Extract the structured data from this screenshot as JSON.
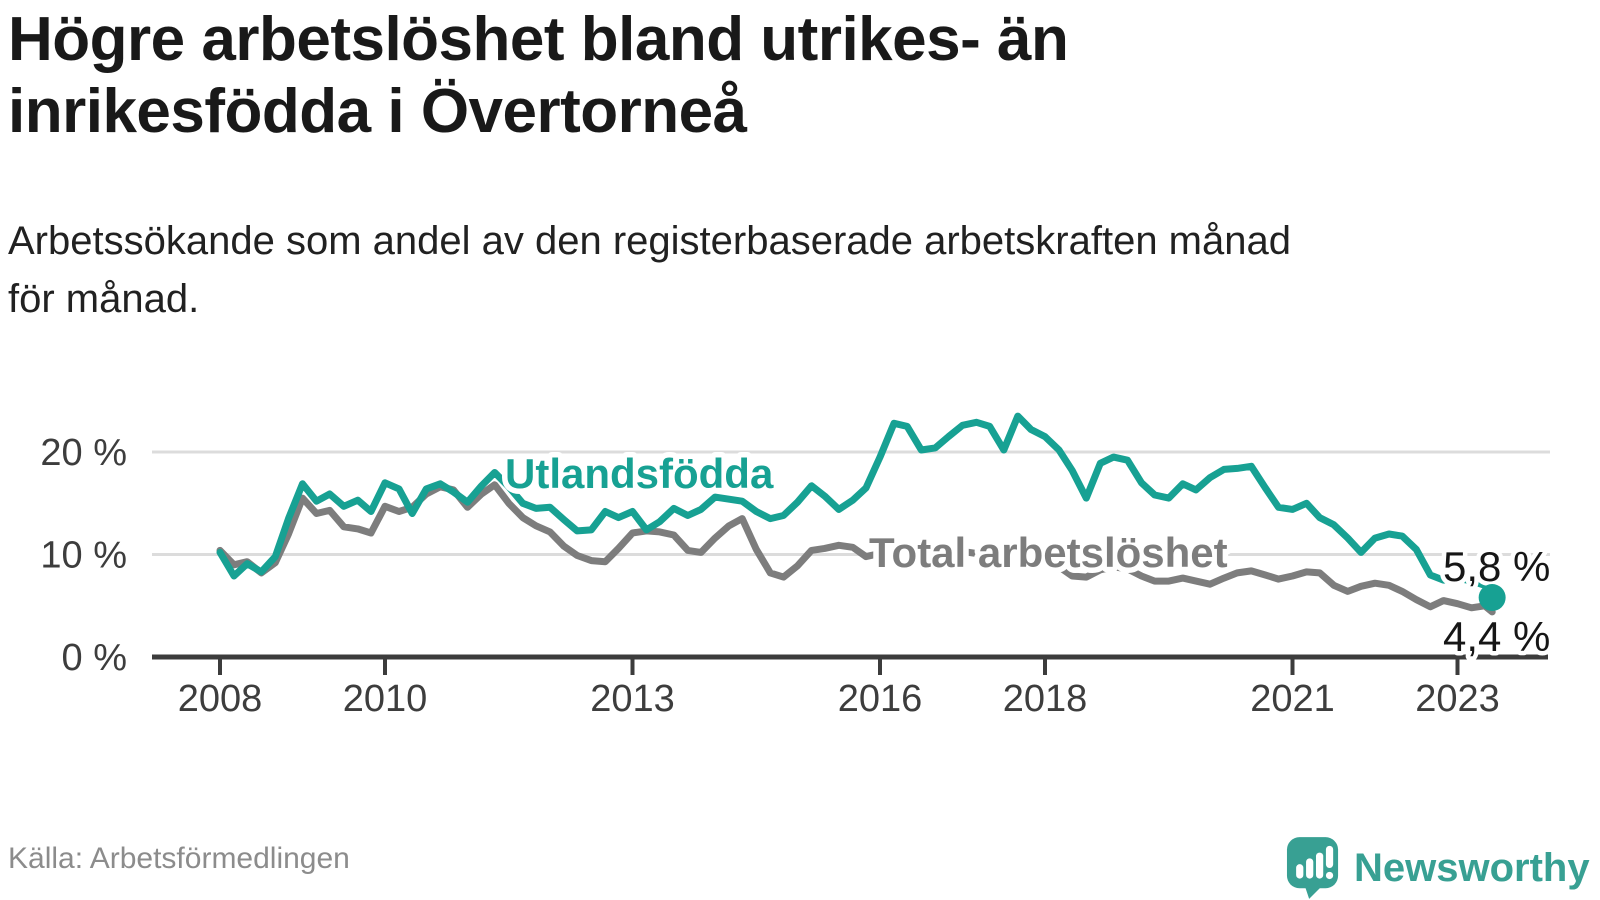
{
  "header": {
    "title_lines": [
      "Högre arbetslöshet bland utrikes- än",
      "inrikesfödda i Övertorneå"
    ],
    "subtitle_lines": [
      "Arbetssökande som andel av den registerbaserade arbetskraften månad",
      "för månad."
    ]
  },
  "footer": {
    "source_label": "Källa: Arbetsförmedlingen",
    "brand_name": "Newsworthy",
    "brand_icon": "speech-bubble-bar-chart-icon"
  },
  "colors": {
    "accent_teal": "#17a193",
    "total_gray": "#7d7d7d",
    "grid": "#dcdcdc",
    "axis": "#3c3c3c",
    "tick_text": "#3d3d3d",
    "value_text": "#161616",
    "title_text": "#191919",
    "muted_text": "#8c8c8c",
    "brand_teal": "#38a093",
    "halo": "#ffffff"
  },
  "chart_data": {
    "type": "line",
    "x_unit": "decimal-year (monthly samples, approx. 2-month grid)",
    "xlim": [
      2008,
      2023.42
    ],
    "ylim": [
      0,
      24.5
    ],
    "grid": "horizontal",
    "legend_position": "inline-labels",
    "x": [
      2008,
      2008.17,
      2008.33,
      2008.5,
      2008.67,
      2008.83,
      2009,
      2009.17,
      2009.33,
      2009.5,
      2009.67,
      2009.83,
      2010,
      2010.17,
      2010.33,
      2010.5,
      2010.67,
      2010.83,
      2011,
      2011.17,
      2011.33,
      2011.5,
      2011.67,
      2011.83,
      2012,
      2012.17,
      2012.33,
      2012.5,
      2012.67,
      2012.83,
      2013,
      2013.17,
      2013.33,
      2013.5,
      2013.67,
      2013.83,
      2014,
      2014.17,
      2014.33,
      2014.5,
      2014.67,
      2014.83,
      2015,
      2015.17,
      2015.33,
      2015.5,
      2015.67,
      2015.83,
      2016,
      2016.17,
      2016.33,
      2016.5,
      2016.67,
      2016.83,
      2017,
      2017.17,
      2017.33,
      2017.5,
      2017.67,
      2017.83,
      2018,
      2018.17,
      2018.33,
      2018.5,
      2018.67,
      2018.83,
      2019,
      2019.17,
      2019.33,
      2019.5,
      2019.67,
      2019.83,
      2020,
      2020.17,
      2020.33,
      2020.5,
      2020.67,
      2020.83,
      2021,
      2021.17,
      2021.33,
      2021.5,
      2021.67,
      2021.83,
      2022,
      2022.17,
      2022.33,
      2022.5,
      2022.67,
      2022.83,
      2023,
      2023.17,
      2023.33,
      2023.42
    ],
    "series": [
      {
        "name": "utlandsfodda",
        "label": "Utlandsfödda",
        "color": "#17a193",
        "end_value": 5.8,
        "end_label": "5,8 %",
        "end_marker": "dot",
        "values": [
          10.2,
          7.9,
          9.1,
          8.3,
          9.8,
          13.5,
          16.9,
          15.2,
          15.9,
          14.7,
          15.3,
          14.2,
          17.0,
          16.4,
          14.0,
          16.4,
          16.9,
          16.1,
          15.1,
          16.7,
          18.0,
          16.6,
          15.0,
          14.5,
          14.6,
          13.4,
          12.3,
          12.4,
          14.2,
          13.6,
          14.2,
          12.4,
          13.2,
          14.5,
          13.8,
          14.4,
          15.6,
          15.4,
          15.2,
          14.2,
          13.5,
          13.8,
          15.1,
          16.7,
          15.7,
          14.4,
          15.3,
          16.5,
          19.5,
          22.8,
          22.5,
          20.2,
          20.4,
          21.5,
          22.6,
          22.9,
          22.5,
          20.2,
          23.5,
          22.2,
          21.5,
          20.2,
          18.2,
          15.5,
          18.9,
          19.5,
          19.2,
          17.0,
          15.8,
          15.5,
          16.9,
          16.3,
          17.5,
          18.3,
          18.4,
          18.6,
          16.5,
          14.6,
          14.4,
          15.0,
          13.6,
          12.9,
          11.6,
          10.2,
          11.6,
          12.0,
          11.8,
          10.5,
          8.0,
          7.5,
          7.7,
          7.4,
          7.0,
          5.8
        ]
      },
      {
        "name": "total-arbetsloshet",
        "label": "Total arbetslöshet",
        "color": "#7d7d7d",
        "end_value": 4.4,
        "end_label": "4,4 %",
        "end_marker": "none",
        "values": [
          10.4,
          9.0,
          9.3,
          8.2,
          9.2,
          12.0,
          15.5,
          14.0,
          14.3,
          12.7,
          12.5,
          12.1,
          14.7,
          14.2,
          14.6,
          15.9,
          16.6,
          16.3,
          14.6,
          15.9,
          16.8,
          15.0,
          13.6,
          12.8,
          12.2,
          10.8,
          9.9,
          9.4,
          9.3,
          10.6,
          12.1,
          12.3,
          12.2,
          11.9,
          10.4,
          10.2,
          11.6,
          12.8,
          13.5,
          10.5,
          8.2,
          7.8,
          8.9,
          10.4,
          10.6,
          10.9,
          10.7,
          9.8,
          10.1,
          10.4,
          10.2,
          9.8,
          10.1,
          9.7,
          10.3,
          10.1,
          10.3,
          9.6,
          10.4,
          10.0,
          9.6,
          8.8,
          7.9,
          7.8,
          8.5,
          8.8,
          8.6,
          7.9,
          7.4,
          7.4,
          7.7,
          7.4,
          7.1,
          7.7,
          8.2,
          8.4,
          8.0,
          7.6,
          7.9,
          8.3,
          8.2,
          7.0,
          6.4,
          6.9,
          7.2,
          7.0,
          6.4,
          5.6,
          4.9,
          5.5,
          5.2,
          4.8,
          5.0,
          4.4
        ]
      }
    ],
    "yticks": [
      {
        "value": 0,
        "label": "0 %"
      },
      {
        "value": 10,
        "label": "10 %"
      },
      {
        "value": 20,
        "label": "20 %"
      }
    ],
    "xticks": [
      {
        "value": 2008,
        "label": "2008"
      },
      {
        "value": 2010,
        "label": "2010"
      },
      {
        "value": 2013,
        "label": "2013"
      },
      {
        "value": 2016,
        "label": "2016"
      },
      {
        "value": 2018,
        "label": "2018"
      },
      {
        "value": 2021,
        "label": "2021"
      },
      {
        "value": 2023,
        "label": "2023"
      }
    ]
  }
}
